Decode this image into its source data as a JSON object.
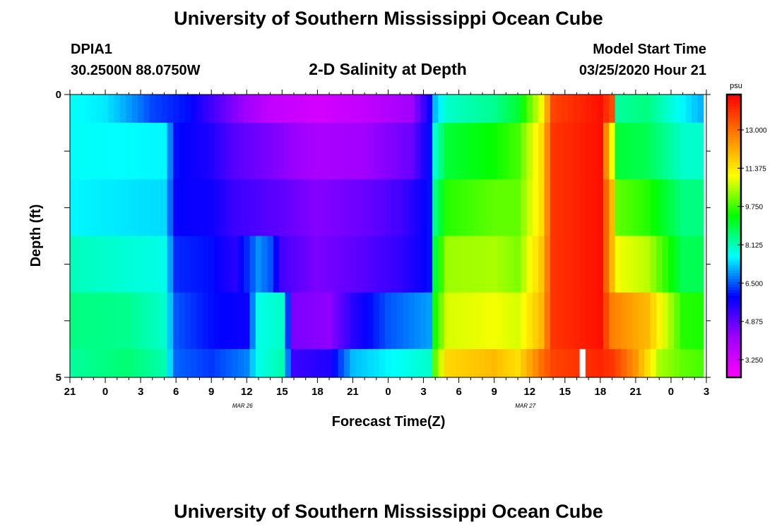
{
  "header": {
    "title": "University of Southern Mississippi Ocean Cube",
    "station_id": "DPIA1",
    "coordinates": "30.2500N 88.0750W",
    "plot_title": "2-D Salinity at Depth",
    "model_start_label": "Model Start Time",
    "model_start_value": "03/25/2020 Hour 21"
  },
  "footer": {
    "title": "University of Southern Mississippi Ocean Cube"
  },
  "chart_data": {
    "type": "heatmap",
    "title": "2-D Salinity at Depth",
    "xlabel": "Forecast Time(Z)",
    "ylabel": "Depth (ft)",
    "x_hours_range": [
      0,
      54
    ],
    "x_tick_labels": [
      "21",
      "0",
      "3",
      "6",
      "9",
      "12",
      "15",
      "18",
      "21",
      "0",
      "3",
      "6",
      "9",
      "12",
      "15",
      "18",
      "21",
      "0",
      "3"
    ],
    "date_labels": [
      {
        "label": "MAR 26",
        "hour": 15
      },
      {
        "label": "MAR 27",
        "hour": 39
      }
    ],
    "y_range": [
      0,
      5
    ],
    "y_tick_labels": [
      "0",
      "5"
    ],
    "y_minor_ticks": [
      1,
      2,
      3,
      4
    ],
    "depth_levels": [
      "0-0.5",
      "0.5-1.5",
      "1.5-2.5",
      "2.5-3.5",
      "3.5-4.5",
      "4.5-5"
    ],
    "colorbar": {
      "unit": "psu",
      "min": 2.5,
      "max": 14.5,
      "tick_labels": [
        "3.250",
        "4.875",
        "6.500",
        "8.125",
        "9.750",
        "11.375",
        "13.000"
      ],
      "tick_values": [
        3.25,
        4.875,
        6.5,
        8.125,
        9.75,
        11.375,
        13.0
      ],
      "colors": [
        "#ff00ff",
        "#a000ff",
        "#0000ff",
        "#00ffff",
        "#00ff00",
        "#ffff00",
        "#ff8000",
        "#ff0000"
      ]
    },
    "missing_value_cell": {
      "hour": 43.5,
      "depth_level": 5
    },
    "series": [
      {
        "name": "0 ft",
        "keyframes": [
          [
            0,
            7.7
          ],
          [
            3,
            7.5
          ],
          [
            5,
            7.0
          ],
          [
            7,
            6.4
          ],
          [
            10,
            6.0
          ],
          [
            14,
            4.5
          ],
          [
            17,
            3.6
          ],
          [
            21,
            3.3
          ],
          [
            25,
            3.6
          ],
          [
            29,
            4.2
          ],
          [
            30.5,
            5.8
          ],
          [
            31,
            7.2
          ],
          [
            32,
            8.0
          ],
          [
            36,
            8.4
          ],
          [
            38,
            9.0
          ],
          [
            40,
            11.0
          ],
          [
            41,
            13.6
          ],
          [
            45,
            14.3
          ],
          [
            46,
            13.5
          ],
          [
            46.5,
            8.3
          ],
          [
            49,
            8.5
          ],
          [
            52,
            7.6
          ],
          [
            54,
            7.0
          ]
        ]
      },
      {
        "name": "1 ft",
        "keyframes": [
          [
            0,
            7.7
          ],
          [
            8,
            7.6
          ],
          [
            9,
            6.0
          ],
          [
            12,
            5.6
          ],
          [
            14,
            5.0
          ],
          [
            17,
            4.6
          ],
          [
            21,
            4.0
          ],
          [
            25,
            4.2
          ],
          [
            29,
            4.8
          ],
          [
            30.5,
            6.0
          ],
          [
            31,
            8.0
          ],
          [
            32,
            9.0
          ],
          [
            36,
            9.4
          ],
          [
            38,
            9.8
          ],
          [
            40,
            11.5
          ],
          [
            41,
            13.8
          ],
          [
            45,
            14.3
          ],
          [
            46,
            11.0
          ],
          [
            46.5,
            9.0
          ],
          [
            49,
            8.8
          ],
          [
            52,
            8.0
          ],
          [
            54,
            8.0
          ]
        ]
      },
      {
        "name": "2 ft",
        "keyframes": [
          [
            0,
            7.6
          ],
          [
            8,
            7.4
          ],
          [
            9,
            5.9
          ],
          [
            12,
            5.8
          ],
          [
            14,
            5.3
          ],
          [
            18,
            4.9
          ],
          [
            21,
            4.5
          ],
          [
            25,
            4.8
          ],
          [
            28,
            5.2
          ],
          [
            30.5,
            6.0
          ],
          [
            31,
            8.5
          ],
          [
            32,
            9.6
          ],
          [
            36,
            10.0
          ],
          [
            38,
            10.0
          ],
          [
            40,
            11.5
          ],
          [
            41,
            13.8
          ],
          [
            45,
            14.3
          ],
          [
            46,
            12.0
          ],
          [
            46.5,
            10.0
          ],
          [
            49,
            9.6
          ],
          [
            52,
            8.5
          ],
          [
            54,
            8.5
          ]
        ]
      },
      {
        "name": "3 ft",
        "keyframes": [
          [
            0,
            8.1
          ],
          [
            8,
            7.8
          ],
          [
            9,
            6.2
          ],
          [
            12,
            6.0
          ],
          [
            14,
            5.5
          ],
          [
            16,
            6.9
          ],
          [
            17,
            6.5
          ],
          [
            18,
            5.2
          ],
          [
            21,
            4.6
          ],
          [
            25,
            5.0
          ],
          [
            28,
            5.4
          ],
          [
            30.5,
            6.0
          ],
          [
            31,
            9.0
          ],
          [
            32,
            10.4
          ],
          [
            36,
            10.5
          ],
          [
            38,
            10.2
          ],
          [
            40,
            11.8
          ],
          [
            41,
            13.8
          ],
          [
            45,
            14.3
          ],
          [
            46,
            12.0
          ],
          [
            46.5,
            11.0
          ],
          [
            49,
            10.6
          ],
          [
            52,
            8.8
          ],
          [
            54,
            8.8
          ]
        ]
      },
      {
        "name": "4 ft",
        "keyframes": [
          [
            0,
            8.5
          ],
          [
            5,
            8.4
          ],
          [
            8,
            8.0
          ],
          [
            9,
            6.5
          ],
          [
            12,
            6.0
          ],
          [
            15,
            5.8
          ],
          [
            16,
            7.8
          ],
          [
            18,
            8.0
          ],
          [
            19,
            4.6
          ],
          [
            22,
            4.4
          ],
          [
            24,
            5.5
          ],
          [
            27,
            6.5
          ],
          [
            30.5,
            7.0
          ],
          [
            31,
            9.5
          ],
          [
            32,
            10.8
          ],
          [
            36,
            11.0
          ],
          [
            38,
            10.8
          ],
          [
            40,
            12.0
          ],
          [
            41,
            13.8
          ],
          [
            45,
            14.3
          ],
          [
            46,
            12.8
          ],
          [
            49,
            12.0
          ],
          [
            52,
            9.6
          ],
          [
            54,
            9.5
          ]
        ]
      },
      {
        "name": "5 ft",
        "keyframes": [
          [
            0,
            8.3
          ],
          [
            5,
            8.6
          ],
          [
            8,
            8.2
          ],
          [
            9,
            6.6
          ],
          [
            12,
            6.3
          ],
          [
            15,
            6.8
          ],
          [
            16,
            7.8
          ],
          [
            18,
            8.2
          ],
          [
            19,
            5.3
          ],
          [
            22,
            5.6
          ],
          [
            24,
            7.2
          ],
          [
            27,
            7.6
          ],
          [
            30.5,
            8.0
          ],
          [
            31,
            10.0
          ],
          [
            32,
            11.6
          ],
          [
            36,
            12.0
          ],
          [
            38,
            11.5
          ],
          [
            40,
            13.0
          ],
          [
            41,
            13.6
          ],
          [
            45,
            14.0
          ],
          [
            46,
            13.8
          ],
          [
            48,
            12.5
          ],
          [
            50,
            10.5
          ],
          [
            52,
            10.0
          ],
          [
            54,
            9.8
          ]
        ]
      }
    ]
  }
}
